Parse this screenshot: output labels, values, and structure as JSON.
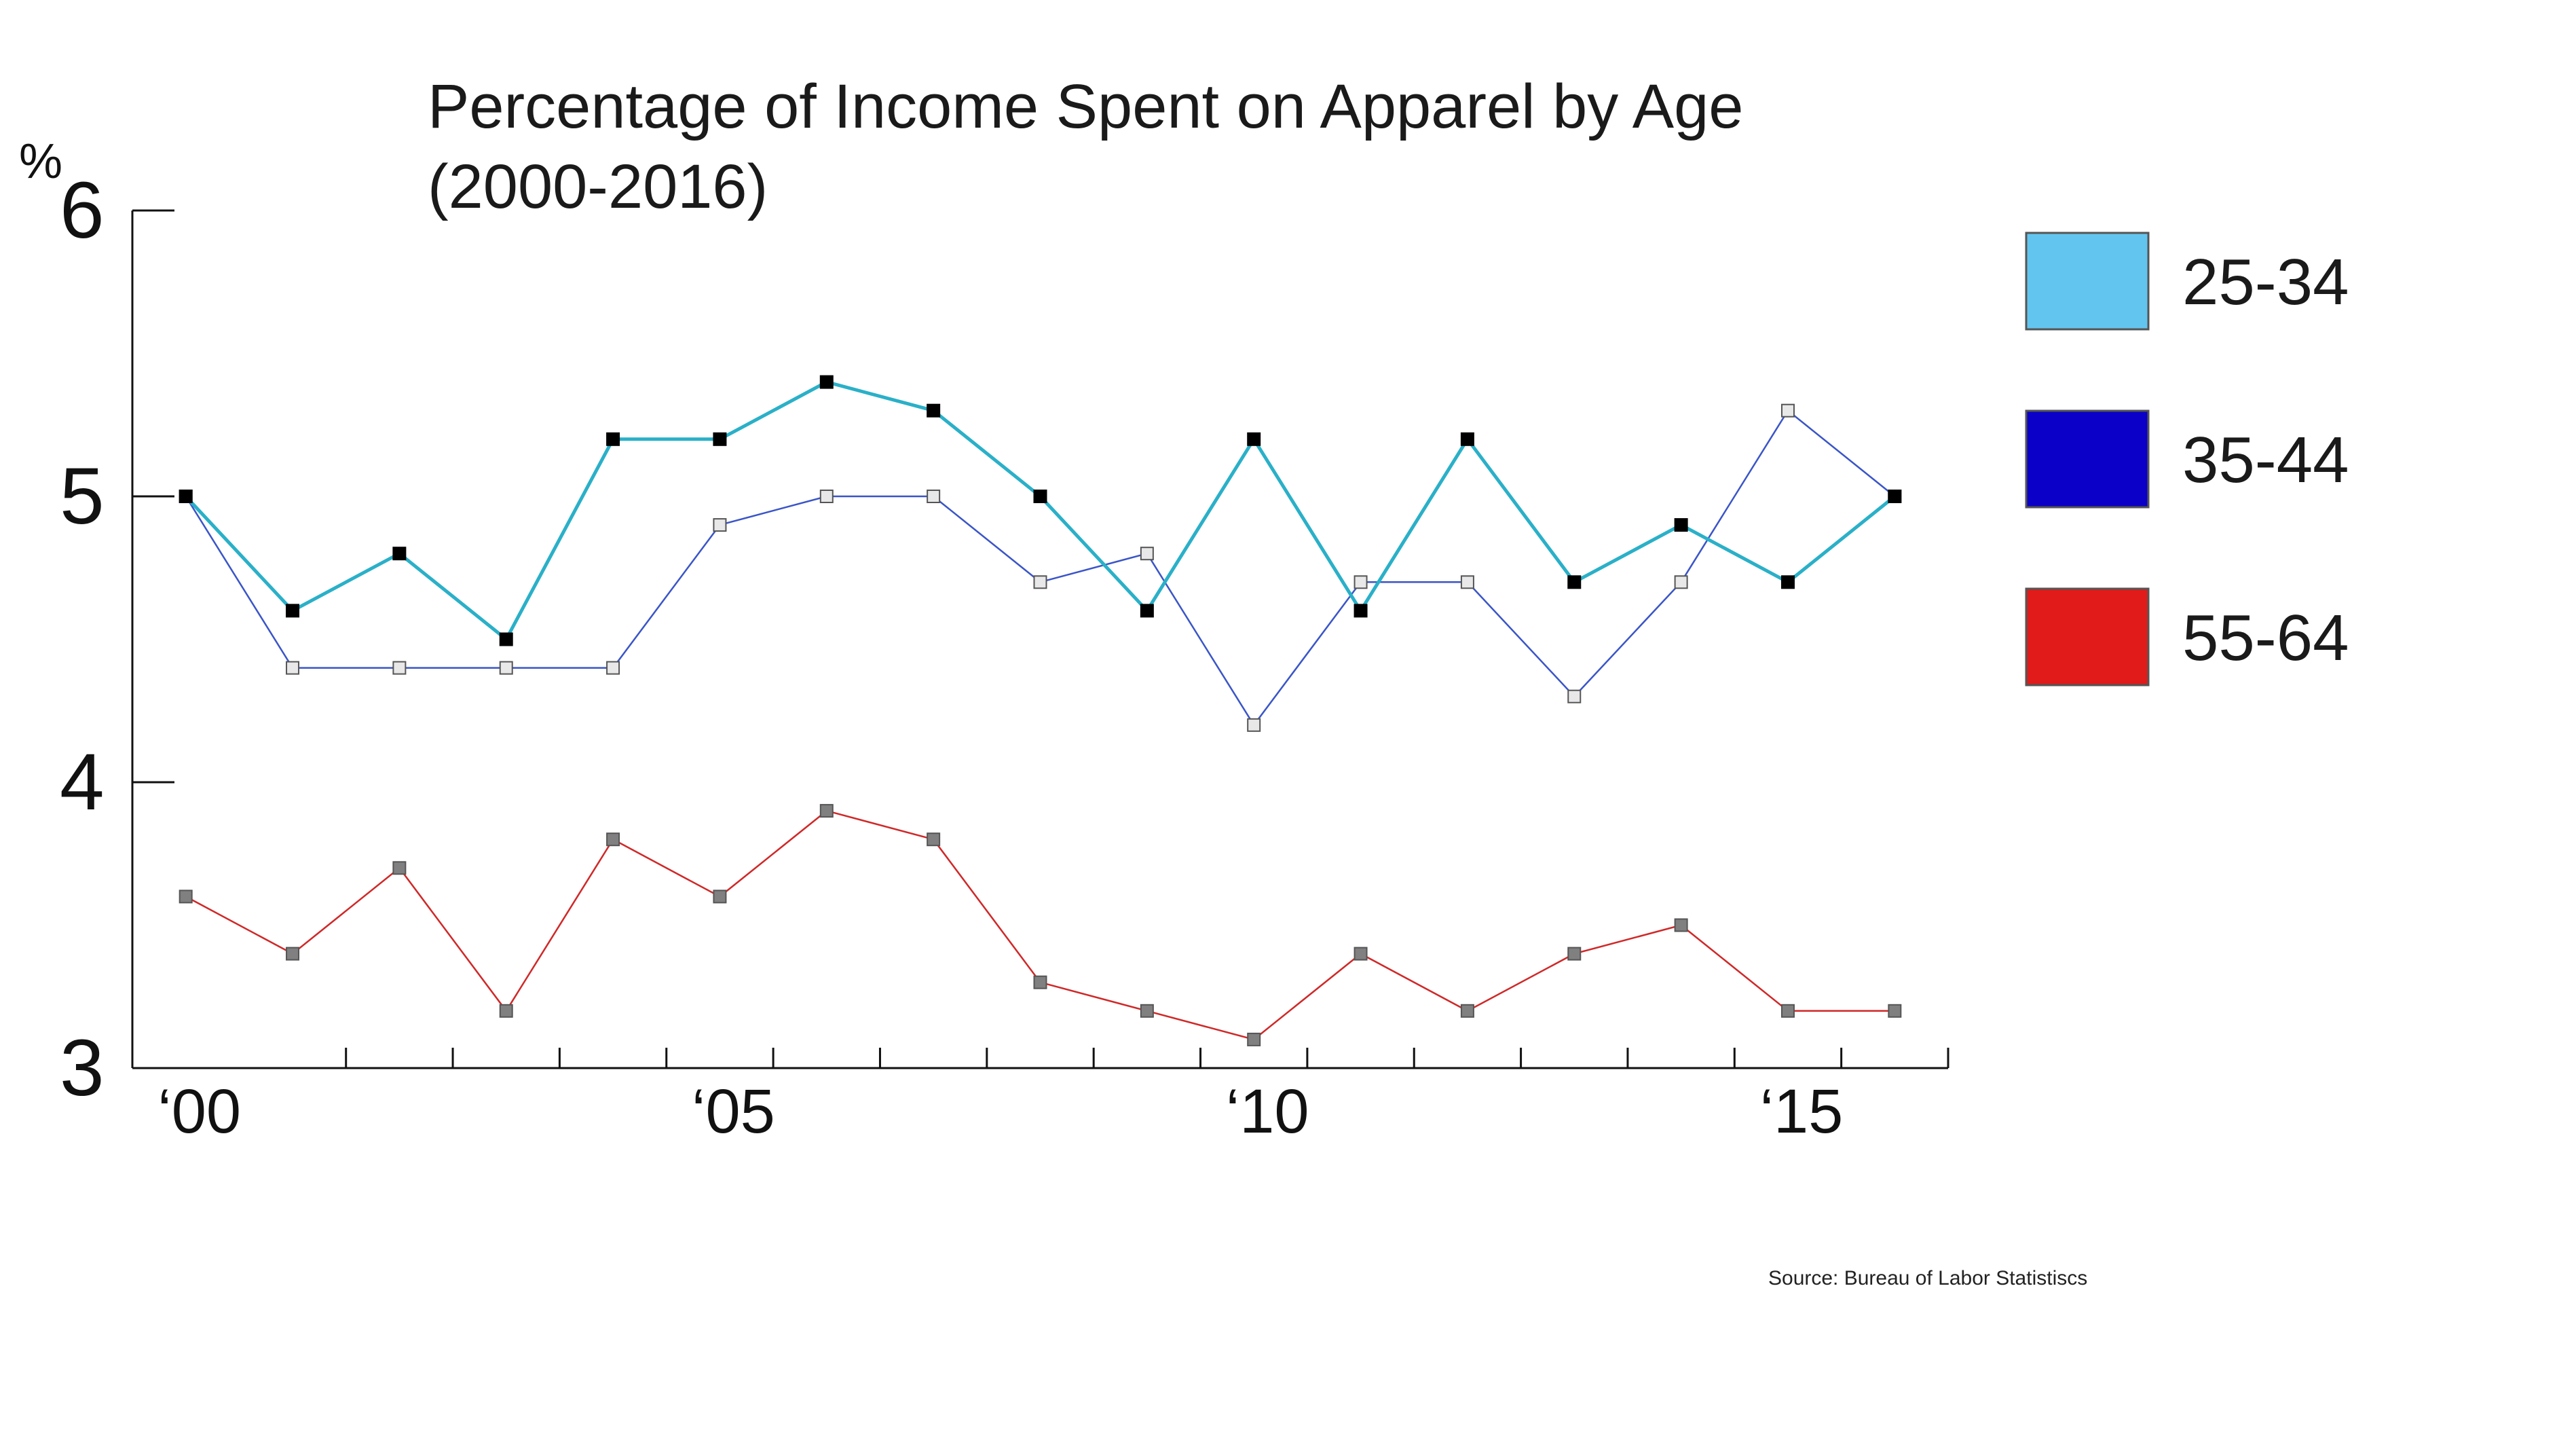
{
  "chart_data": {
    "type": "line",
    "title": "Percentage of Income Spent on Apparel by Age",
    "subtitle": "(2000-2016)",
    "ylabel": "%",
    "xlabel": "",
    "x": [
      2000,
      2001,
      2002,
      2003,
      2004,
      2005,
      2006,
      2007,
      2008,
      2009,
      2010,
      2011,
      2012,
      2013,
      2014,
      2015,
      2016
    ],
    "xlim": [
      1999.5,
      2016.5
    ],
    "ylim": [
      3,
      6
    ],
    "y_ticks": [
      3,
      4,
      5,
      6
    ],
    "y_tick_labels": [
      "3",
      "4",
      "5",
      "6"
    ],
    "x_tick_labels": [
      {
        "x": 2000,
        "label": "‘00"
      },
      {
        "x": 2005,
        "label": "‘05"
      },
      {
        "x": 2010,
        "label": "‘10"
      },
      {
        "x": 2015,
        "label": "‘15"
      }
    ],
    "grid": false,
    "legend_position": "right",
    "series": [
      {
        "name": "25-34",
        "color": "#2ab0c8",
        "swatch": "#62c5f0",
        "marker_fill": "#000000",
        "values": [
          5.0,
          4.6,
          4.8,
          4.5,
          5.2,
          5.2,
          5.4,
          5.3,
          5.0,
          4.6,
          5.2,
          4.6,
          5.2,
          4.7,
          4.9,
          4.7,
          5.0
        ]
      },
      {
        "name": "35-44",
        "color": "#3a55c8",
        "swatch": "#0a00c8",
        "marker_fill": "#e8e8e8",
        "values": [
          5.0,
          4.4,
          4.4,
          4.4,
          4.4,
          4.9,
          5.0,
          5.0,
          4.7,
          4.8,
          4.2,
          4.7,
          4.7,
          4.3,
          4.7,
          5.3,
          5.0
        ]
      },
      {
        "name": "55-64",
        "color": "#d02828",
        "swatch": "#e11a1a",
        "marker_fill": "#808080",
        "values": [
          3.6,
          3.4,
          3.7,
          3.2,
          3.8,
          3.6,
          3.9,
          3.8,
          3.3,
          3.2,
          3.1,
          3.4,
          3.2,
          3.4,
          3.5,
          3.2,
          3.2
        ]
      }
    ],
    "source": "Source: Bureau of Labor Statistiscs"
  }
}
